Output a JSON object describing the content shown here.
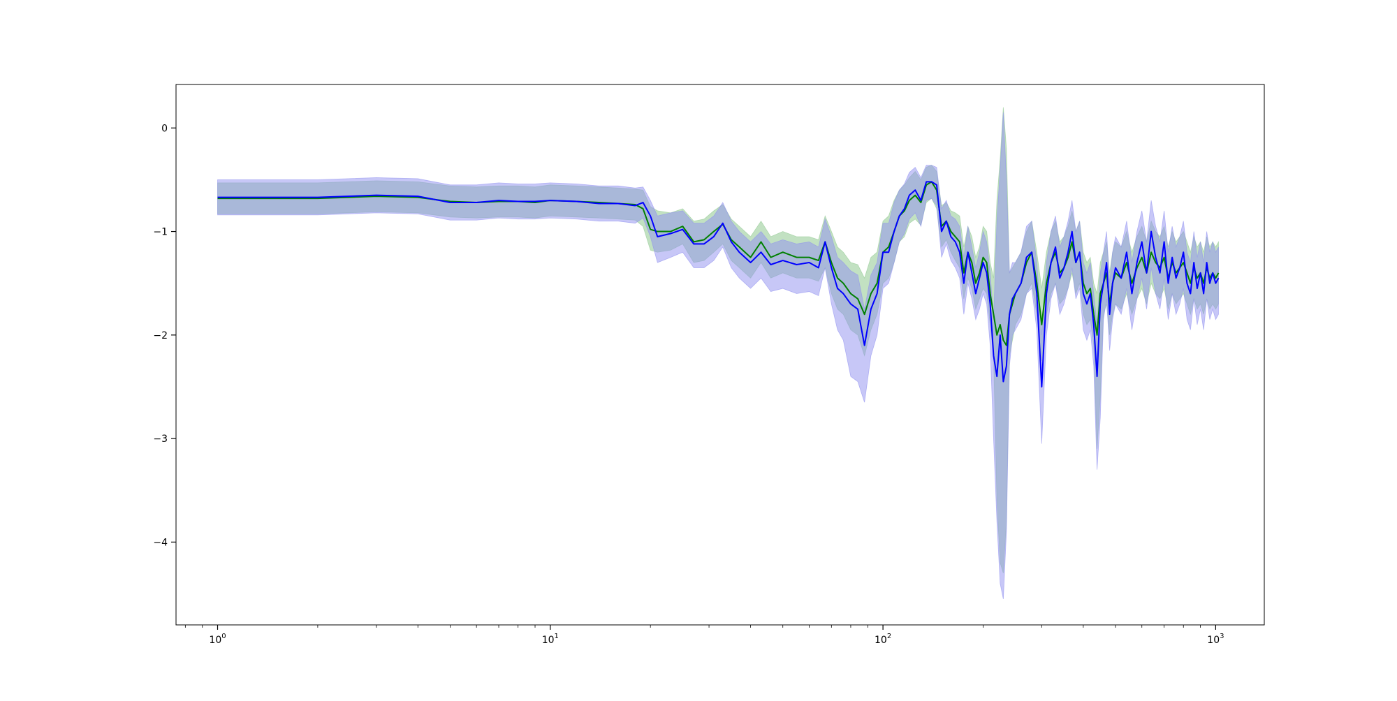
{
  "chart_data": {
    "type": "line",
    "title": "",
    "xlabel": "",
    "ylabel": "",
    "xscale": "log",
    "xlim": [
      0.75,
      1400
    ],
    "ylim": [
      -4.8,
      0.42
    ],
    "grid": false,
    "xticks": [
      {
        "value": 1,
        "base": "10",
        "exp": "0"
      },
      {
        "value": 10,
        "base": "10",
        "exp": "1"
      },
      {
        "value": 100,
        "base": "10",
        "exp": "2"
      },
      {
        "value": 1000,
        "base": "10",
        "exp": "3"
      }
    ],
    "yticks": [
      {
        "value": 0,
        "label": "0"
      },
      {
        "value": -1,
        "label": "−1"
      },
      {
        "value": -2,
        "label": "−2"
      },
      {
        "value": -3,
        "label": "−3"
      },
      {
        "value": -4,
        "label": "−4"
      }
    ],
    "series": [
      {
        "color": "#008000",
        "band_color": "#90c890",
        "x": [
          1,
          2,
          3,
          4,
          5,
          6,
          7,
          8,
          9,
          10,
          12,
          14,
          16,
          18,
          19,
          20,
          21,
          23,
          25,
          27,
          29,
          31,
          33,
          35,
          37,
          40,
          43,
          46,
          50,
          55,
          60,
          64,
          67,
          70,
          73,
          76,
          80,
          84,
          88,
          92,
          96,
          100,
          104,
          108,
          112,
          116,
          120,
          125,
          130,
          135,
          140,
          145,
          150,
          155,
          160,
          165,
          170,
          175,
          180,
          185,
          190,
          195,
          200,
          205,
          210,
          215,
          220,
          225,
          230,
          235,
          240,
          245,
          250,
          260,
          270,
          280,
          290,
          300,
          310,
          320,
          330,
          340,
          350,
          360,
          370,
          380,
          390,
          400,
          410,
          420,
          430,
          440,
          450,
          460,
          470,
          480,
          490,
          500,
          520,
          540,
          560,
          580,
          600,
          620,
          640,
          660,
          680,
          700,
          720,
          740,
          760,
          780,
          800,
          820,
          840,
          860,
          880,
          900,
          920,
          940,
          960,
          980,
          1000,
          1020
        ],
        "y": [
          -0.68,
          -0.68,
          -0.66,
          -0.67,
          -0.71,
          -0.72,
          -0.71,
          -0.71,
          -0.72,
          -0.7,
          -0.71,
          -0.72,
          -0.73,
          -0.74,
          -0.78,
          -0.98,
          -1.0,
          -1.0,
          -0.95,
          -1.1,
          -1.08,
          -1.0,
          -0.93,
          -1.08,
          -1.15,
          -1.25,
          -1.1,
          -1.25,
          -1.2,
          -1.25,
          -1.25,
          -1.28,
          -1.1,
          -1.3,
          -1.45,
          -1.5,
          -1.6,
          -1.65,
          -1.8,
          -1.6,
          -1.5,
          -1.2,
          -1.15,
          -1.0,
          -0.85,
          -0.8,
          -0.7,
          -0.65,
          -0.72,
          -0.55,
          -0.52,
          -0.6,
          -0.95,
          -0.9,
          -1.0,
          -1.05,
          -1.1,
          -1.4,
          -1.2,
          -1.3,
          -1.5,
          -1.4,
          -1.25,
          -1.3,
          -1.6,
          -1.8,
          -2.0,
          -1.9,
          -2.05,
          -2.1,
          -1.8,
          -1.7,
          -1.6,
          -1.5,
          -1.3,
          -1.2,
          -1.5,
          -1.9,
          -1.5,
          -1.3,
          -1.2,
          -1.4,
          -1.35,
          -1.25,
          -1.1,
          -1.3,
          -1.2,
          -1.5,
          -1.6,
          -1.55,
          -1.8,
          -2.0,
          -1.6,
          -1.5,
          -1.4,
          -1.7,
          -1.5,
          -1.4,
          -1.45,
          -1.3,
          -1.5,
          -1.35,
          -1.25,
          -1.4,
          -1.2,
          -1.3,
          -1.35,
          -1.25,
          -1.45,
          -1.3,
          -1.4,
          -1.35,
          -1.3,
          -1.4,
          -1.5,
          -1.35,
          -1.45,
          -1.4,
          -1.5,
          -1.35,
          -1.45,
          -1.4,
          -1.45,
          -1.4
        ],
        "upper": [
          -0.53,
          -0.53,
          -0.51,
          -0.52,
          -0.56,
          -0.57,
          -0.56,
          -0.56,
          -0.57,
          -0.55,
          -0.56,
          -0.57,
          -0.58,
          -0.59,
          -0.6,
          -0.76,
          -0.8,
          -0.82,
          -0.78,
          -0.9,
          -0.88,
          -0.8,
          -0.74,
          -0.88,
          -0.95,
          -1.05,
          -0.9,
          -1.05,
          -1.0,
          -1.05,
          -1.05,
          -1.08,
          -0.85,
          -1.0,
          -1.15,
          -1.2,
          -1.3,
          -1.32,
          -1.45,
          -1.25,
          -1.2,
          -0.9,
          -0.85,
          -0.7,
          -0.6,
          -0.55,
          -0.48,
          -0.42,
          -0.5,
          -0.38,
          -0.36,
          -0.42,
          -0.75,
          -0.72,
          -0.8,
          -0.82,
          -0.85,
          -1.15,
          -0.95,
          -1.05,
          -1.25,
          -1.15,
          -0.95,
          -1.0,
          -1.3,
          -1.45,
          -0.7,
          -0.3,
          0.2,
          -0.2,
          -1.4,
          -1.35,
          -1.3,
          -1.2,
          -1.0,
          -0.9,
          -1.2,
          -1.55,
          -1.2,
          -1.0,
          -0.9,
          -1.1,
          -1.05,
          -0.95,
          -0.8,
          -1.0,
          -0.9,
          -1.2,
          -1.3,
          -1.25,
          -1.5,
          -1.6,
          -1.3,
          -1.2,
          -1.1,
          -1.4,
          -1.2,
          -1.1,
          -1.15,
          -1.0,
          -1.2,
          -1.05,
          -0.95,
          -1.1,
          -0.9,
          -1.0,
          -1.05,
          -0.95,
          -1.15,
          -1.0,
          -1.1,
          -1.05,
          -1.0,
          -1.1,
          -1.2,
          -1.05,
          -1.15,
          -1.1,
          -1.2,
          -1.05,
          -1.15,
          -1.1,
          -1.15,
          -1.1
        ],
        "lower": [
          -0.83,
          -0.83,
          -0.81,
          -0.82,
          -0.86,
          -0.87,
          -0.86,
          -0.86,
          -0.87,
          -0.85,
          -0.86,
          -0.87,
          -0.88,
          -0.89,
          -0.95,
          -1.18,
          -1.2,
          -1.18,
          -1.12,
          -1.3,
          -1.28,
          -1.2,
          -1.12,
          -1.28,
          -1.35,
          -1.45,
          -1.3,
          -1.45,
          -1.4,
          -1.45,
          -1.45,
          -1.48,
          -1.35,
          -1.6,
          -1.75,
          -1.8,
          -1.95,
          -2.0,
          -2.2,
          -1.95,
          -1.8,
          -1.5,
          -1.45,
          -1.3,
          -1.1,
          -1.05,
          -0.92,
          -0.88,
          -0.94,
          -0.72,
          -0.68,
          -0.78,
          -1.15,
          -1.08,
          -1.2,
          -1.28,
          -1.35,
          -1.65,
          -1.45,
          -1.55,
          -1.75,
          -1.65,
          -1.55,
          -1.6,
          -1.9,
          -2.2,
          -3.6,
          -4.2,
          -4.3,
          -3.8,
          -2.2,
          -2.05,
          -1.9,
          -1.8,
          -1.6,
          -1.5,
          -1.8,
          -2.25,
          -1.8,
          -1.6,
          -1.5,
          -1.7,
          -1.65,
          -1.55,
          -1.4,
          -1.6,
          -1.5,
          -1.8,
          -1.9,
          -1.85,
          -2.1,
          -3.1,
          -2.6,
          -1.8,
          -1.7,
          -2.0,
          -1.8,
          -1.7,
          -1.75,
          -1.6,
          -1.8,
          -1.65,
          -1.55,
          -1.7,
          -1.5,
          -1.6,
          -1.65,
          -1.55,
          -1.75,
          -1.6,
          -1.7,
          -1.65,
          -1.6,
          -1.7,
          -1.8,
          -1.65,
          -1.75,
          -1.7,
          -1.8,
          -1.65,
          -1.75,
          -1.7,
          -1.75,
          -1.7
        ]
      },
      {
        "color": "#0000ff",
        "band_color": "#9090f0",
        "x": [
          1,
          2,
          3,
          4,
          5,
          6,
          7,
          8,
          9,
          10,
          12,
          14,
          16,
          18,
          19,
          20,
          21,
          23,
          25,
          27,
          29,
          31,
          33,
          35,
          37,
          40,
          43,
          46,
          50,
          55,
          60,
          64,
          67,
          70,
          73,
          76,
          80,
          84,
          88,
          92,
          96,
          100,
          104,
          108,
          112,
          116,
          120,
          125,
          130,
          135,
          140,
          145,
          150,
          155,
          160,
          165,
          170,
          175,
          180,
          185,
          190,
          195,
          200,
          205,
          210,
          215,
          220,
          225,
          230,
          235,
          240,
          245,
          250,
          260,
          270,
          280,
          290,
          300,
          310,
          320,
          330,
          340,
          350,
          360,
          370,
          380,
          390,
          400,
          410,
          420,
          430,
          440,
          450,
          460,
          470,
          480,
          490,
          500,
          520,
          540,
          560,
          580,
          600,
          620,
          640,
          660,
          680,
          700,
          720,
          740,
          760,
          780,
          800,
          820,
          840,
          860,
          880,
          900,
          920,
          940,
          960,
          980,
          1000,
          1020
        ],
        "y": [
          -0.67,
          -0.67,
          -0.65,
          -0.66,
          -0.72,
          -0.72,
          -0.7,
          -0.71,
          -0.71,
          -0.7,
          -0.71,
          -0.73,
          -0.73,
          -0.75,
          -0.72,
          -0.85,
          -1.05,
          -1.02,
          -0.98,
          -1.12,
          -1.12,
          -1.05,
          -0.92,
          -1.1,
          -1.2,
          -1.3,
          -1.2,
          -1.32,
          -1.28,
          -1.32,
          -1.3,
          -1.35,
          -1.1,
          -1.35,
          -1.55,
          -1.6,
          -1.7,
          -1.75,
          -2.1,
          -1.75,
          -1.6,
          -1.2,
          -1.2,
          -1.0,
          -0.85,
          -0.78,
          -0.65,
          -0.6,
          -0.7,
          -0.52,
          -0.52,
          -0.55,
          -1.0,
          -0.9,
          -1.05,
          -1.1,
          -1.2,
          -1.5,
          -1.2,
          -1.4,
          -1.6,
          -1.45,
          -1.3,
          -1.4,
          -1.7,
          -2.2,
          -2.4,
          -2.0,
          -2.45,
          -2.3,
          -1.8,
          -1.65,
          -1.6,
          -1.5,
          -1.25,
          -1.2,
          -1.6,
          -2.5,
          -1.6,
          -1.3,
          -1.15,
          -1.45,
          -1.35,
          -1.2,
          -1.0,
          -1.3,
          -1.2,
          -1.6,
          -1.7,
          -1.6,
          -1.9,
          -2.4,
          -1.7,
          -1.5,
          -1.3,
          -1.8,
          -1.5,
          -1.35,
          -1.45,
          -1.2,
          -1.6,
          -1.3,
          -1.1,
          -1.4,
          -1.0,
          -1.25,
          -1.4,
          -1.1,
          -1.5,
          -1.25,
          -1.45,
          -1.35,
          -1.2,
          -1.5,
          -1.6,
          -1.3,
          -1.55,
          -1.4,
          -1.6,
          -1.3,
          -1.5,
          -1.4,
          -1.5,
          -1.45
        ],
        "upper": [
          -0.5,
          -0.5,
          -0.48,
          -0.49,
          -0.55,
          -0.55,
          -0.53,
          -0.54,
          -0.54,
          -0.53,
          -0.54,
          -0.56,
          -0.56,
          -0.58,
          -0.57,
          -0.7,
          -0.85,
          -0.82,
          -0.8,
          -0.92,
          -0.92,
          -0.85,
          -0.72,
          -0.9,
          -1.0,
          -1.1,
          -1.0,
          -1.12,
          -1.08,
          -1.12,
          -1.1,
          -1.15,
          -0.88,
          -1.05,
          -1.25,
          -1.3,
          -1.38,
          -1.42,
          -1.75,
          -1.42,
          -1.3,
          -0.92,
          -0.92,
          -0.72,
          -0.6,
          -0.54,
          -0.43,
          -0.38,
          -0.48,
          -0.36,
          -0.36,
          -0.38,
          -0.78,
          -0.7,
          -0.85,
          -0.88,
          -0.95,
          -1.25,
          -0.95,
          -1.15,
          -1.35,
          -1.2,
          -1.0,
          -1.1,
          -1.4,
          -1.85,
          -0.9,
          -0.4,
          0.15,
          -0.5,
          -1.4,
          -1.3,
          -1.3,
          -1.2,
          -0.95,
          -0.9,
          -1.3,
          -2.0,
          -1.3,
          -1.0,
          -0.85,
          -1.15,
          -1.05,
          -0.9,
          -0.7,
          -1.0,
          -0.9,
          -1.3,
          -1.4,
          -1.3,
          -1.6,
          -1.9,
          -1.4,
          -1.2,
          -1.0,
          -1.5,
          -1.2,
          -1.05,
          -1.15,
          -0.9,
          -1.3,
          -1.0,
          -0.8,
          -1.1,
          -0.7,
          -0.95,
          -1.1,
          -0.8,
          -1.2,
          -0.95,
          -1.15,
          -1.05,
          -0.9,
          -1.2,
          -1.3,
          -1.0,
          -1.25,
          -1.1,
          -1.3,
          -1.0,
          -1.2,
          -1.1,
          -1.2,
          -1.15
        ],
        "lower": [
          -0.84,
          -0.84,
          -0.82,
          -0.83,
          -0.89,
          -0.89,
          -0.87,
          -0.88,
          -0.88,
          -0.87,
          -0.88,
          -0.9,
          -0.9,
          -0.92,
          -0.87,
          -1.05,
          -1.3,
          -1.25,
          -1.2,
          -1.35,
          -1.35,
          -1.28,
          -1.15,
          -1.35,
          -1.45,
          -1.55,
          -1.45,
          -1.58,
          -1.55,
          -1.6,
          -1.58,
          -1.62,
          -1.35,
          -1.7,
          -1.95,
          -2.05,
          -2.4,
          -2.45,
          -2.65,
          -2.2,
          -2.0,
          -1.55,
          -1.5,
          -1.3,
          -1.1,
          -1.02,
          -0.88,
          -0.82,
          -0.95,
          -0.7,
          -0.68,
          -0.75,
          -1.25,
          -1.12,
          -1.28,
          -1.35,
          -1.45,
          -1.8,
          -1.5,
          -1.65,
          -1.85,
          -1.75,
          -1.6,
          -1.7,
          -2.1,
          -3.0,
          -3.8,
          -4.4,
          -4.55,
          -3.9,
          -2.3,
          -2.0,
          -1.95,
          -1.85,
          -1.6,
          -1.55,
          -1.95,
          -3.05,
          -2.0,
          -1.65,
          -1.5,
          -1.8,
          -1.7,
          -1.55,
          -1.35,
          -1.65,
          -1.55,
          -1.95,
          -2.05,
          -1.95,
          -2.3,
          -3.3,
          -2.8,
          -1.85,
          -1.65,
          -2.15,
          -1.85,
          -1.7,
          -1.8,
          -1.55,
          -1.95,
          -1.65,
          -1.45,
          -1.75,
          -1.35,
          -1.6,
          -1.75,
          -1.45,
          -1.85,
          -1.6,
          -1.8,
          -1.7,
          -1.55,
          -1.85,
          -1.95,
          -1.65,
          -1.9,
          -1.75,
          -1.95,
          -1.65,
          -1.85,
          -1.75,
          -1.85,
          -1.8
        ]
      }
    ]
  }
}
